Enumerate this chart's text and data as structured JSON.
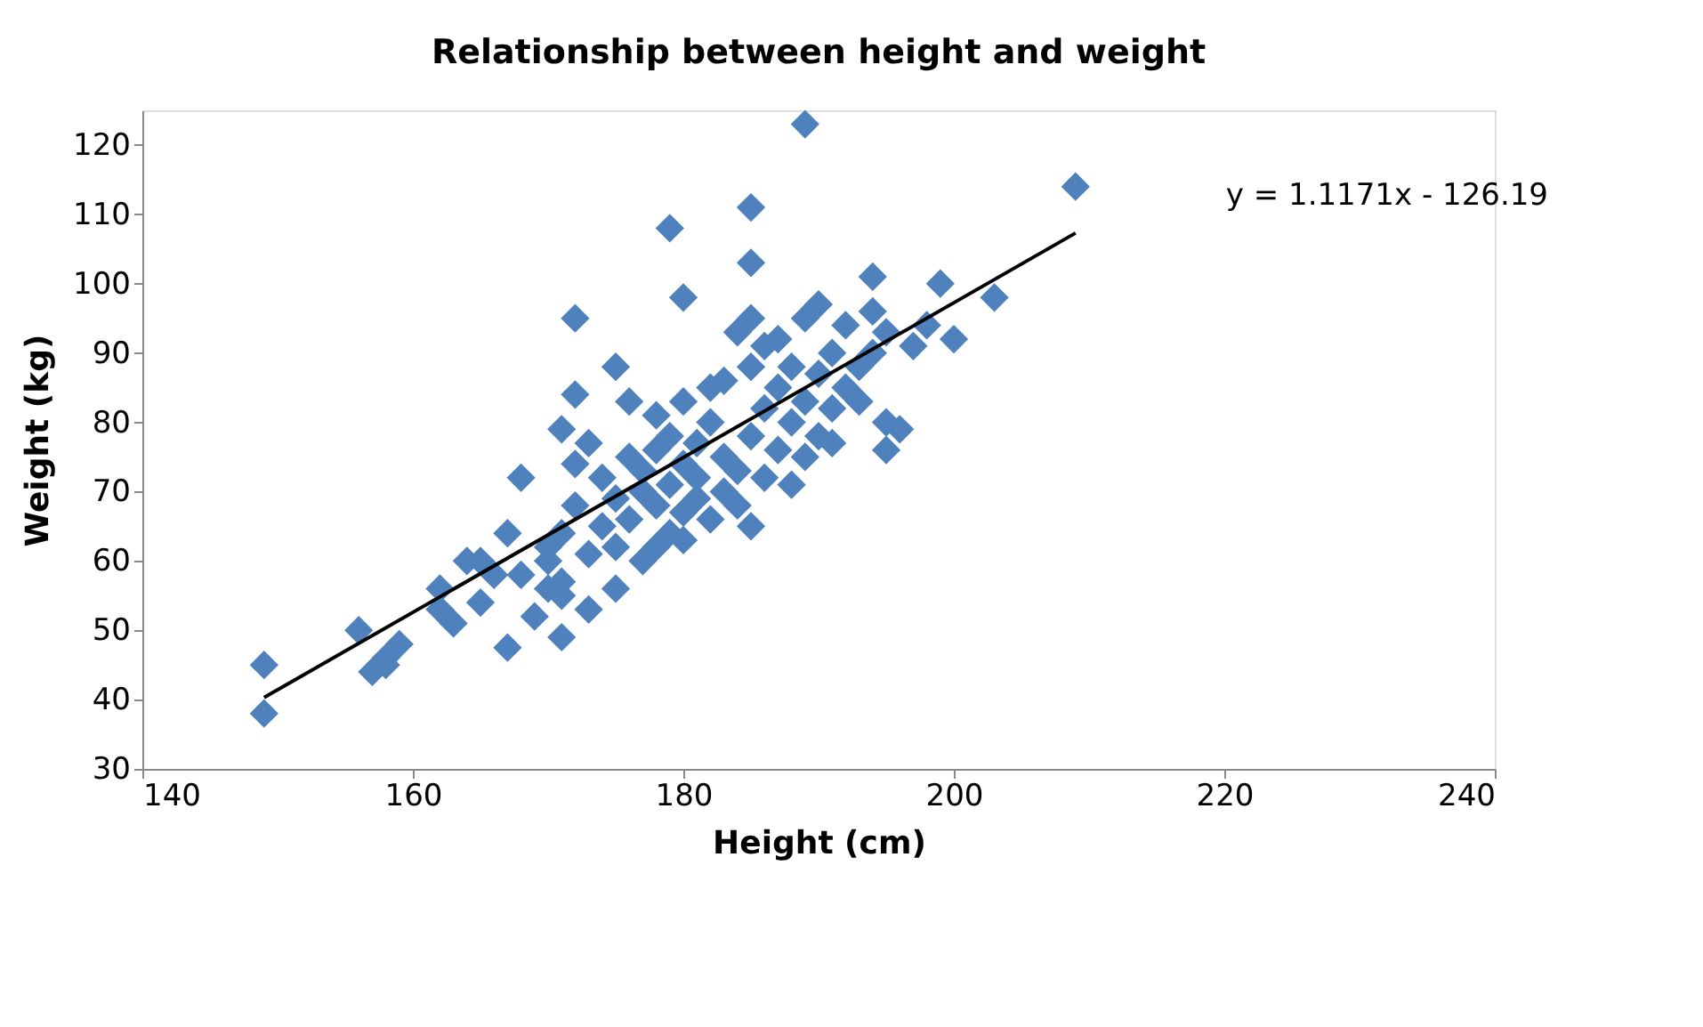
{
  "chart_data": {
    "type": "scatter",
    "title": "Relationship between height and weight",
    "xlabel": "Height (cm)",
    "ylabel": "Weight (kg)",
    "xlim": [
      140,
      240
    ],
    "xticks": [
      140,
      160,
      180,
      200,
      220,
      240
    ],
    "ylim": [
      30,
      125
    ],
    "yticks": [
      30,
      40,
      50,
      60,
      70,
      80,
      90,
      100,
      110,
      120
    ],
    "grid": false,
    "marker": "diamond",
    "annotations": [
      "y = 1.1171x - 126.19"
    ],
    "series": [
      {
        "color": "#4f81bd",
        "x": [
          149,
          149,
          156,
          157,
          158,
          158,
          159,
          162,
          162,
          163,
          164,
          165,
          165,
          166,
          167,
          167,
          168,
          168,
          169,
          170,
          170,
          170,
          171,
          171,
          171,
          171,
          171,
          172,
          172,
          172,
          172,
          173,
          173,
          173,
          174,
          174,
          175,
          175,
          175,
          175,
          176,
          176,
          176,
          177,
          177,
          177,
          178,
          178,
          178,
          178,
          179,
          179,
          179,
          179,
          180,
          180,
          180,
          180,
          180,
          181,
          181,
          181,
          182,
          182,
          182,
          183,
          183,
          183,
          184,
          184,
          184,
          185,
          185,
          185,
          185,
          185,
          185,
          186,
          186,
          186,
          187,
          187,
          187,
          188,
          188,
          188,
          189,
          189,
          189,
          189,
          190,
          190,
          190,
          191,
          191,
          191,
          192,
          192,
          193,
          193,
          194,
          194,
          194,
          195,
          195,
          195,
          196,
          197,
          198,
          199,
          200,
          203,
          209
        ],
        "values": [
          45,
          38,
          50,
          44,
          45,
          46,
          48,
          53,
          56,
          51,
          60,
          54,
          60,
          58,
          47.5,
          64,
          72,
          58,
          52,
          60,
          56,
          62,
          57,
          55,
          64,
          79,
          49,
          68,
          95,
          84,
          74,
          53,
          61,
          77,
          65,
          72,
          62,
          69,
          56,
          88,
          83,
          75,
          66,
          60,
          70,
          73,
          62,
          68,
          76,
          81,
          108,
          64,
          71,
          78,
          98,
          63,
          67,
          74,
          83,
          69,
          72,
          77,
          85,
          66,
          80,
          70,
          75,
          86,
          68,
          93,
          73,
          111,
          103,
          65,
          78,
          95,
          88,
          91,
          72,
          82,
          76,
          85,
          92,
          71,
          80,
          88,
          123,
          95,
          75,
          83,
          78,
          87,
          97,
          77,
          82,
          90,
          85,
          94,
          83,
          88,
          101,
          90,
          96,
          80,
          76,
          93,
          79,
          91,
          94,
          100,
          92,
          98,
          114
        ]
      },
      {
        "type": "line",
        "color": "#000000",
        "marker": "none",
        "x": [
          149,
          209
        ],
        "values": [
          40.3,
          107.3
        ]
      }
    ]
  }
}
